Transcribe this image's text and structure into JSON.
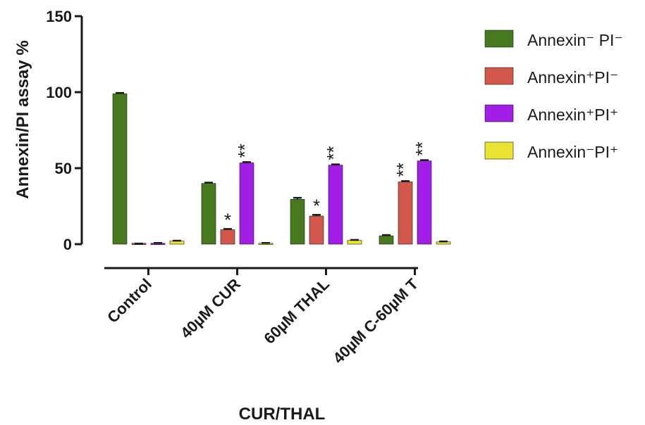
{
  "chart_data": {
    "type": "bar",
    "title": "",
    "xlabel": "CUR/THAL",
    "ylabel": "Annexin/PI assay %",
    "ylim": [
      0,
      150
    ],
    "yticks": [
      "0",
      "50",
      "100",
      "150"
    ],
    "categories": [
      "Control",
      "40µM CUR",
      "60µM THAL",
      "40µM C-60µM T"
    ],
    "legend_position": "right",
    "grid": false,
    "series": [
      {
        "name": "Annexin⁻ PI⁻",
        "color": "#477a1e",
        "values": [
          99,
          40,
          29.5,
          5.5
        ],
        "errors": [
          0.5,
          0.5,
          1,
          0.5
        ],
        "annotations": [
          "",
          "",
          "",
          ""
        ]
      },
      {
        "name": "Annexin⁺PI⁻",
        "color": "#d2584c",
        "values": [
          0.2,
          9.5,
          18.5,
          41
        ],
        "errors": [
          0.2,
          0.5,
          0.8,
          0.5
        ],
        "annotations": [
          "",
          "*",
          "*",
          "**"
        ]
      },
      {
        "name": "Annexin⁺PI⁺",
        "color": "#a21de6",
        "values": [
          0.5,
          53.5,
          52,
          54.8
        ],
        "errors": [
          0.3,
          0.5,
          0.5,
          0.5
        ],
        "annotations": [
          "",
          "**",
          "**",
          "**"
        ]
      },
      {
        "name": "Annexin⁻PI⁺",
        "color": "#eae332",
        "values": [
          2,
          0.5,
          2.5,
          1.5
        ],
        "errors": [
          0.3,
          0.3,
          0.3,
          0.3
        ],
        "annotations": [
          "",
          "",
          "",
          ""
        ]
      }
    ]
  }
}
